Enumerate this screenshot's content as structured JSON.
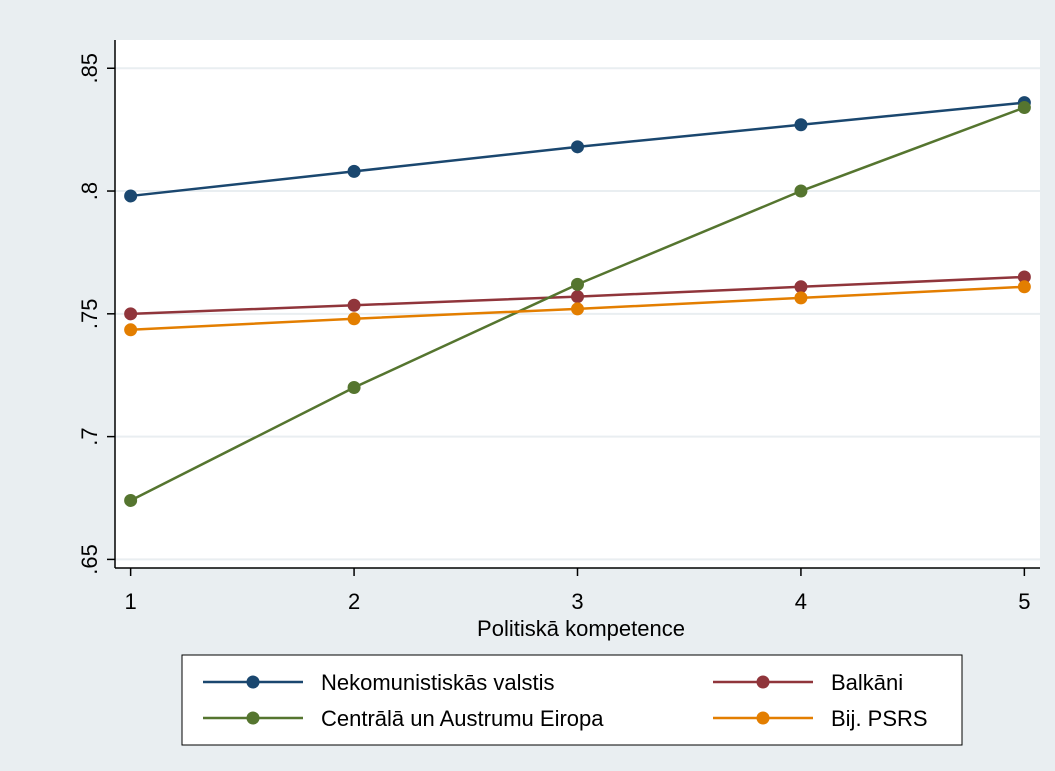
{
  "chart_data": {
    "type": "line",
    "title": "",
    "xlabel": "Politiskā kompetence",
    "ylabel": "",
    "x": [
      1,
      2,
      3,
      4,
      5
    ],
    "xlim": [
      0.93,
      5.07
    ],
    "ylim": [
      0.6465,
      0.8615
    ],
    "xticks": [
      "1",
      "2",
      "3",
      "4",
      "5"
    ],
    "yticks": [
      {
        "value": 0.65,
        "label": ".65"
      },
      {
        "value": 0.7,
        "label": ".7"
      },
      {
        "value": 0.75,
        "label": ".75"
      },
      {
        "value": 0.8,
        "label": ".8"
      },
      {
        "value": 0.85,
        "label": ".85"
      }
    ],
    "grid": true,
    "legend_position": "bottom",
    "series": [
      {
        "name": "Nekomunistiskās valstis",
        "color": "#1a476f",
        "values": [
          0.798,
          0.808,
          0.818,
          0.827,
          0.836
        ]
      },
      {
        "name": "Balkāni",
        "color": "#90353b",
        "values": [
          0.75,
          0.7535,
          0.757,
          0.761,
          0.765
        ]
      },
      {
        "name": "Centrālā un Austrumu Eiropa",
        "color": "#55752f",
        "values": [
          0.674,
          0.72,
          0.762,
          0.8,
          0.834
        ]
      },
      {
        "name": "Bij. PSRS",
        "color": "#e37e00",
        "values": [
          0.7435,
          0.748,
          0.752,
          0.7565,
          0.761
        ]
      }
    ]
  }
}
